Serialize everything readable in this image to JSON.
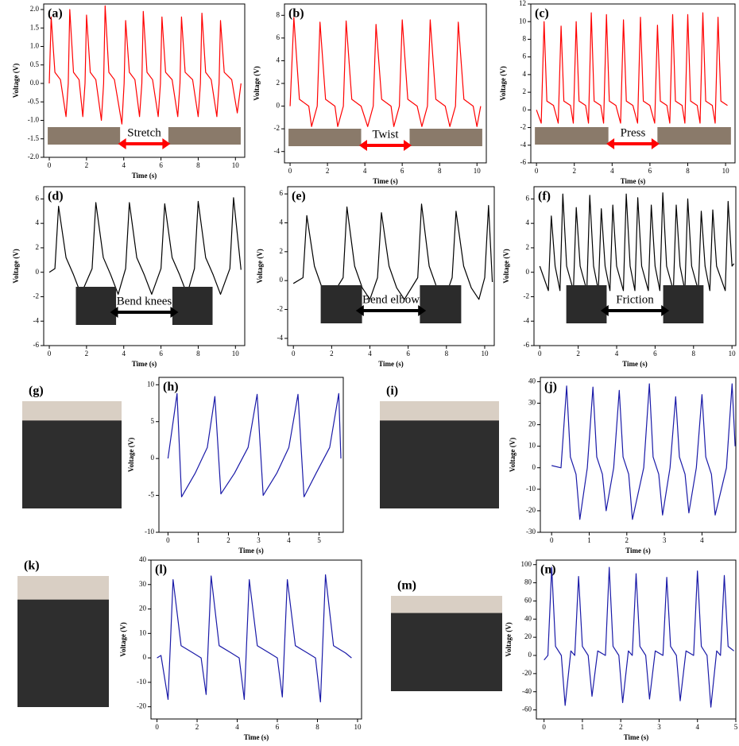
{
  "chart_data": [
    {
      "type": "line",
      "panel_label": "(a)",
      "x_label": "Time (s)",
      "y_label": "Voltage (V)",
      "annotation": "Stretch",
      "color": "#ff0000",
      "xlim": [
        -0.3,
        10.5
      ],
      "xticks": [
        0,
        2,
        4,
        6,
        8,
        10
      ],
      "ylim": [
        -2.0,
        2.15
      ],
      "yticks": [
        {
          "value": -2.0,
          "label": "-2.0"
        },
        -1.5,
        {
          "value": -1.0,
          "label": "-1.0"
        },
        -0.5,
        {
          "value": 0.0,
          "label": "0.0"
        },
        0.5,
        {
          "value": 1.0,
          "label": "1.0"
        },
        1.5,
        {
          "value": 2.0,
          "label": "2.0"
        }
      ],
      "x": [
        0,
        0.1,
        0.3,
        0.6,
        0.9,
        1.02,
        1.1,
        1.3,
        1.6,
        1.8,
        1.92,
        2.0,
        2.2,
        2.5,
        2.8,
        2.92,
        3.0,
        3.2,
        3.5,
        3.9,
        4.02,
        4.1,
        4.3,
        4.6,
        4.85,
        4.97,
        5.05,
        5.25,
        5.55,
        5.85,
        5.97,
        6.05,
        6.25,
        6.6,
        6.9,
        7.02,
        7.1,
        7.3,
        7.7,
        8.0,
        8.12,
        8.2,
        8.4,
        8.7,
        9.0,
        9.12,
        9.2,
        9.4,
        9.8,
        10.1,
        10.3
      ],
      "values": [
        0,
        1.8,
        0.3,
        0.1,
        -0.9,
        0,
        2.0,
        0.3,
        0.1,
        -0.9,
        0,
        1.85,
        0.3,
        0.1,
        -1.0,
        0,
        2.1,
        0.3,
        0.1,
        -1.1,
        0,
        1.7,
        0.3,
        0.1,
        -0.9,
        0,
        1.95,
        0.3,
        0.1,
        -0.9,
        0,
        1.8,
        0.3,
        0.1,
        -0.9,
        0,
        1.8,
        0.3,
        0.1,
        -0.9,
        0,
        1.9,
        0.3,
        0.1,
        -0.9,
        0,
        1.7,
        0.3,
        0.1,
        -0.8,
        0
      ]
    },
    {
      "type": "line",
      "panel_label": "(b)",
      "x_label": "Time (s)",
      "y_label": "Voltage (V)",
      "annotation": "Twist",
      "color": "#ff0000",
      "xlim": [
        -0.3,
        10.5
      ],
      "xticks": [
        0,
        2,
        4,
        6,
        8,
        10
      ],
      "ylim": [
        -5,
        9
      ],
      "yticks": [
        -4,
        -2,
        0,
        2,
        4,
        6,
        8
      ],
      "x": [
        0,
        0.2,
        0.5,
        1.0,
        1.15,
        1.45,
        1.6,
        1.9,
        2.4,
        2.55,
        2.85,
        3.0,
        3.3,
        3.8,
        4.15,
        4.45,
        4.6,
        4.9,
        5.4,
        5.55,
        5.85,
        6.0,
        6.3,
        6.8,
        7.05,
        7.35,
        7.5,
        7.8,
        8.3,
        8.55,
        8.85,
        9.0,
        9.3,
        9.8,
        10.0,
        10.2
      ],
      "values": [
        0,
        7.8,
        0.6,
        0,
        -1.8,
        0,
        7.4,
        0.6,
        0,
        -1.8,
        0,
        7.5,
        0.6,
        0,
        -1.8,
        0,
        7.2,
        0.6,
        0,
        -1.8,
        0,
        7.6,
        0.6,
        0,
        -1.8,
        0,
        7.6,
        0.6,
        0,
        -1.8,
        0,
        7.4,
        0.6,
        0,
        -1.8,
        0
      ]
    },
    {
      "type": "line",
      "panel_label": "(c)",
      "x_label": "Time (s)",
      "y_label": "Voltage (V)",
      "annotation": "Press",
      "color": "#ff0000",
      "xlim": [
        -0.3,
        10.5
      ],
      "xticks": [
        0,
        2,
        4,
        6,
        8,
        10
      ],
      "ylim": [
        -6,
        12
      ],
      "yticks": [
        -6,
        -4,
        -2,
        0,
        2,
        4,
        6,
        8,
        10,
        12
      ],
      "x": [
        0,
        0.25,
        0.4,
        0.55,
        0.9,
        1.15,
        1.3,
        1.45,
        1.8,
        1.95,
        2.1,
        2.25,
        2.6,
        2.75,
        2.9,
        3.05,
        3.4,
        3.55,
        3.7,
        3.85,
        4.2,
        4.45,
        4.6,
        4.75,
        5.1,
        5.35,
        5.5,
        5.65,
        6.0,
        6.25,
        6.4,
        6.55,
        6.9,
        7.05,
        7.2,
        7.35,
        7.7,
        7.85,
        8.0,
        8.15,
        8.5,
        8.65,
        8.8,
        8.95,
        9.3,
        9.45,
        9.6,
        9.75,
        10.1
      ],
      "values": [
        0,
        -1.5,
        10,
        1,
        0.5,
        -1.5,
        9.5,
        1,
        0.5,
        -1.5,
        10,
        1,
        0.5,
        -1.5,
        11,
        1,
        0.5,
        -1.5,
        10.8,
        1,
        0.5,
        -1.5,
        10.2,
        1,
        0.5,
        -1.5,
        10.5,
        1,
        0.5,
        -1.5,
        9.6,
        1,
        0.5,
        -1.5,
        10.8,
        1,
        0.5,
        -1.5,
        10.8,
        1,
        0.5,
        -1.5,
        11,
        1,
        0.5,
        -1.5,
        10.5,
        1,
        0.5
      ]
    },
    {
      "type": "line",
      "panel_label": "(d)",
      "x_label": "Time (s)",
      "y_label": "Voltage (V)",
      "annotation": "Bend knees",
      "color": "#000000",
      "xlim": [
        -0.3,
        10.5
      ],
      "xticks": [
        0,
        2,
        4,
        6,
        8,
        10
      ],
      "ylim": [
        -6,
        7
      ],
      "yticks": [
        -6,
        -4,
        -2,
        0,
        2,
        4,
        6
      ],
      "x": [
        0,
        0.3,
        0.5,
        0.9,
        1.3,
        1.7,
        2.3,
        2.5,
        2.9,
        3.3,
        3.7,
        4.1,
        4.3,
        4.7,
        5.1,
        5.5,
        6.0,
        6.2,
        6.6,
        7.0,
        7.4,
        7.8,
        8.0,
        8.4,
        8.8,
        9.2,
        9.7,
        9.9,
        10.3
      ],
      "values": [
        0,
        0.3,
        5.4,
        1.2,
        -0.2,
        -1.8,
        0.3,
        5.7,
        1.2,
        -0.2,
        -1.8,
        0.3,
        5.7,
        1.2,
        -0.2,
        -1.8,
        0.3,
        5.6,
        1.2,
        -0.2,
        -1.8,
        0.3,
        5.8,
        1.2,
        -0.2,
        -1.8,
        0.3,
        6.1,
        0.2
      ]
    },
    {
      "type": "line",
      "panel_label": "(e)",
      "x_label": "Time (s)",
      "y_label": "Voltage (V)",
      "annotation": "Bend elbow",
      "color": "#000000",
      "xlim": [
        -0.3,
        10.5
      ],
      "xticks": [
        0,
        2,
        4,
        6,
        8,
        10
      ],
      "ylim": [
        -4.5,
        6.5
      ],
      "yticks": [
        -4,
        -2,
        0,
        2,
        4,
        6
      ],
      "x": [
        0,
        0.5,
        0.7,
        1.1,
        1.5,
        1.9,
        2.6,
        2.8,
        3.2,
        3.6,
        4.0,
        4.4,
        4.6,
        5.0,
        5.4,
        5.8,
        6.5,
        6.7,
        7.1,
        7.5,
        7.9,
        8.3,
        8.5,
        8.9,
        9.3,
        9.7,
        10.0,
        10.2,
        10.4
      ],
      "values": [
        -0.2,
        0.2,
        4.5,
        1.0,
        -0.5,
        -1.3,
        0.2,
        5.1,
        1.0,
        -0.5,
        -1.3,
        0.2,
        4.7,
        1.0,
        -0.5,
        -1.3,
        0.2,
        5.3,
        1.0,
        -0.5,
        -1.3,
        0.2,
        4.8,
        1.0,
        -0.5,
        -1.3,
        0.2,
        5.2,
        -0.1
      ]
    },
    {
      "type": "line",
      "panel_label": "(f)",
      "x_label": "Time (s)",
      "y_label": "Voltage (V)",
      "annotation": "Friction",
      "color": "#000000",
      "xlim": [
        -0.3,
        10.2
      ],
      "xticks": [
        0,
        2,
        4,
        6,
        8,
        10
      ],
      "ylim": [
        -6,
        7
      ],
      "yticks": [
        -6,
        -4,
        -2,
        0,
        2,
        4,
        6
      ],
      "x": [
        0,
        0.45,
        0.6,
        0.8,
        1.05,
        1.2,
        1.4,
        1.75,
        1.9,
        2.1,
        2.45,
        2.6,
        2.8,
        3.05,
        3.2,
        3.4,
        3.65,
        3.8,
        4.0,
        4.35,
        4.5,
        4.7,
        4.95,
        5.1,
        5.3,
        5.65,
        5.8,
        6.0,
        6.25,
        6.4,
        6.6,
        6.95,
        7.1,
        7.3,
        7.55,
        7.7,
        7.9,
        8.25,
        8.4,
        8.6,
        8.85,
        9.0,
        9.2,
        9.65,
        9.8,
        10.0,
        10.1
      ],
      "values": [
        0.5,
        -1.5,
        4.6,
        0.5,
        -1.5,
        6.4,
        0.5,
        -1.5,
        5.3,
        0.5,
        -1.5,
        6.3,
        0.5,
        -1.5,
        5.2,
        0.5,
        -1.5,
        5.5,
        0.5,
        -1.5,
        6.4,
        0.5,
        -1.5,
        6.1,
        0.5,
        -1.5,
        5.5,
        0.5,
        -1.5,
        6.5,
        0.5,
        -1.5,
        5.5,
        0.5,
        -1.5,
        6.0,
        0.5,
        -1.5,
        5.0,
        0.5,
        -1.5,
        5.1,
        0.5,
        -1.5,
        5.8,
        0.5,
        0.7
      ]
    },
    {
      "type": "line",
      "panel_label": "(h)",
      "x_label": "Time (s)",
      "y_label": "Voltage (V)",
      "color": "#1a1aa8",
      "xlim": [
        -0.3,
        5.8
      ],
      "xticks": [
        0,
        1,
        2,
        3,
        4,
        5
      ],
      "ylim": [
        -10,
        11
      ],
      "yticks": [
        -10,
        -5,
        0,
        5,
        10
      ],
      "x": [
        0,
        0.3,
        0.45,
        0.9,
        1.3,
        1.55,
        1.75,
        2.2,
        2.65,
        2.95,
        3.15,
        3.6,
        4.0,
        4.3,
        4.5,
        4.9,
        5.35,
        5.65,
        5.72
      ],
      "values": [
        0,
        8.8,
        -5.2,
        -2,
        1.5,
        8.4,
        -4.8,
        -2,
        1.5,
        8.7,
        -5,
        -2,
        1.5,
        8.7,
        -5.2,
        -2,
        1.5,
        8.8,
        0
      ]
    },
    {
      "type": "line",
      "panel_label": "(j)",
      "x_label": "Time (s)",
      "y_label": "Voltage (V)",
      "color": "#1a1aa8",
      "xlim": [
        -0.3,
        4.9
      ],
      "xticks": [
        0,
        1,
        2,
        3,
        4
      ],
      "ylim": [
        -30,
        42
      ],
      "yticks": [
        -30,
        -20,
        -10,
        0,
        10,
        20,
        30,
        40
      ],
      "x": [
        0,
        0.25,
        0.4,
        0.5,
        0.65,
        0.75,
        0.95,
        1.1,
        1.2,
        1.35,
        1.45,
        1.65,
        1.8,
        1.9,
        2.05,
        2.15,
        2.45,
        2.6,
        2.7,
        2.85,
        2.95,
        3.15,
        3.3,
        3.4,
        3.55,
        3.65,
        3.85,
        4.0,
        4.1,
        4.25,
        4.35,
        4.65,
        4.8,
        4.88
      ],
      "values": [
        1,
        0,
        38,
        5,
        -3,
        -24,
        0,
        37.5,
        5,
        -3,
        -20,
        0,
        36,
        5,
        -3,
        -24,
        0,
        39,
        5,
        -3,
        -22,
        0,
        33,
        5,
        -3,
        -21,
        0,
        34,
        5,
        -3,
        -22,
        0,
        39,
        10
      ]
    },
    {
      "type": "line",
      "panel_label": "(l)",
      "x_label": "Time (s)",
      "y_label": "Voltage (V)",
      "color": "#1a1aa8",
      "xlim": [
        -0.3,
        10.2
      ],
      "xticks": [
        0,
        2,
        4,
        6,
        8,
        10
      ],
      "ylim": [
        -25,
        40
      ],
      "yticks": [
        -20,
        -10,
        0,
        10,
        20,
        30,
        40
      ],
      "x": [
        0,
        0.2,
        0.55,
        0.8,
        1.2,
        1.8,
        2.2,
        2.45,
        2.7,
        3.1,
        3.7,
        4.1,
        4.35,
        4.6,
        5.0,
        5.6,
        6.0,
        6.25,
        6.5,
        6.9,
        7.5,
        7.9,
        8.15,
        8.4,
        8.8,
        9.4,
        9.7
      ],
      "values": [
        0,
        1,
        -17,
        32,
        5,
        2,
        0,
        -15,
        33.5,
        5,
        2,
        0,
        -17,
        32,
        5,
        2,
        0,
        -16,
        32,
        5,
        2,
        0,
        -18,
        34,
        5,
        2,
        0
      ]
    },
    {
      "type": "line",
      "panel_label": "(n)",
      "x_label": "Time (s)",
      "y_label": "Voltage (V)",
      "color": "#1a1aa8",
      "xlim": [
        -0.2,
        5
      ],
      "xticks": [
        0,
        1,
        2,
        3,
        4,
        5
      ],
      "ylim": [
        -70,
        105
      ],
      "yticks": [
        -60,
        -40,
        -20,
        0,
        20,
        40,
        60,
        80,
        100
      ],
      "x": [
        0,
        0.1,
        0.2,
        0.3,
        0.45,
        0.55,
        0.7,
        0.8,
        0.9,
        1.0,
        1.15,
        1.25,
        1.4,
        1.6,
        1.7,
        1.8,
        1.95,
        2.05,
        2.2,
        2.3,
        2.4,
        2.5,
        2.65,
        2.75,
        2.9,
        3.1,
        3.2,
        3.3,
        3.45,
        3.55,
        3.7,
        3.9,
        4.0,
        4.1,
        4.25,
        4.35,
        4.5,
        4.6,
        4.7,
        4.8,
        4.95
      ],
      "values": [
        -5,
        0,
        97,
        10,
        0,
        -55,
        5,
        0,
        87,
        10,
        0,
        -45,
        5,
        0,
        97,
        10,
        0,
        -52,
        5,
        0,
        90,
        10,
        0,
        -48,
        5,
        0,
        86,
        10,
        0,
        -50,
        5,
        0,
        93,
        10,
        0,
        -57,
        5,
        0,
        88,
        10,
        5
      ]
    }
  ],
  "photo_panels": [
    {
      "label": "(g)"
    },
    {
      "label": "(i)"
    },
    {
      "label": "(k)"
    },
    {
      "label": "(m)"
    }
  ]
}
